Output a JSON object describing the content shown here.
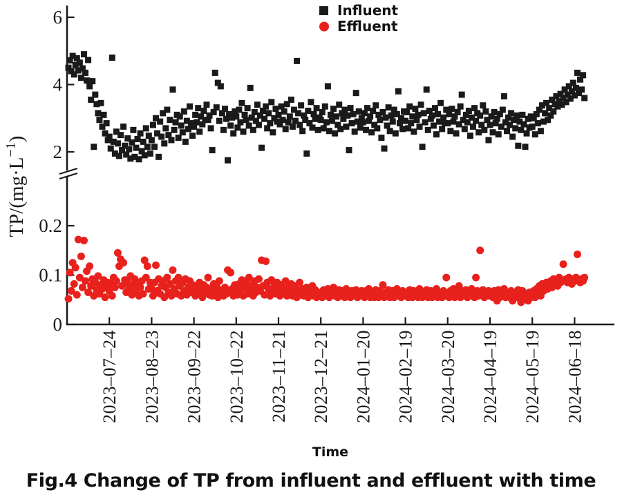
{
  "figure": {
    "caption": "Fig.4 Change of TP from influent and effluent with time",
    "background_color": "#ffffff",
    "axis_color": "#1a1a1a"
  },
  "chart_data": {
    "type": "scatter",
    "title": "",
    "xlabel": "Time",
    "ylabel": "TP/(mg·L⁻¹)",
    "y_label_parts": [
      "TP/(mg·L",
      "−1",
      ")"
    ],
    "broken_y_axis": true,
    "legend_position": "top-center",
    "grid": false,
    "upper_axis": {
      "tick_values": [
        2,
        4,
        6
      ],
      "tick_labels": [
        "2",
        "4",
        "6"
      ],
      "range_shown": [
        1.6,
        6.2
      ]
    },
    "lower_axis": {
      "tick_values": [
        0,
        0.1,
        0.2
      ],
      "tick_labels": [
        "0",
        "0.1",
        "0.2"
      ],
      "range_shown": [
        0,
        0.31
      ]
    },
    "x_axis": {
      "tick_labels": [
        "2023–07–24",
        "2023–08–23",
        "2023–09–22",
        "2023–10–22",
        "2023–11–21",
        "2023–12–21",
        "2024–01–20",
        "2024–02–19",
        "2024–03–20",
        "2024–04–19",
        "2024–05–19",
        "2024–06–18"
      ],
      "tick_days": [
        30,
        60,
        90,
        120,
        150,
        180,
        210,
        240,
        270,
        300,
        330,
        360
      ],
      "day_range": [
        0,
        372
      ]
    },
    "series": [
      {
        "name": "Influent",
        "marker": "square",
        "color": "#1a1a1a",
        "axis": "upper",
        "start_day": 1,
        "values": [
          4.5,
          4.72,
          4.4,
          4.85,
          4.3,
          4.58,
          4.78,
          4.42,
          4.65,
          4.2,
          4.48,
          4.9,
          4.35,
          4.12,
          4.73,
          3.95,
          3.55,
          4.1,
          2.15,
          3.7,
          3.42,
          3.15,
          2.95,
          3.45,
          2.75,
          3.1,
          2.55,
          2.85,
          2.35,
          2.45,
          2.1,
          4.8,
          2.3,
          1.95,
          2.6,
          2.25,
          1.88,
          2.5,
          2.05,
          2.75,
          2.18,
          1.92,
          2.4,
          2.08,
          1.8,
          2.28,
          2.65,
          1.85,
          2.12,
          2.38,
          1.78,
          2.55,
          2.02,
          2.3,
          1.9,
          2.7,
          2.15,
          2.48,
          1.95,
          2.35,
          2.8,
          2.15,
          3.0,
          2.55,
          1.85,
          2.9,
          2.45,
          3.15,
          2.25,
          2.7,
          3.25,
          2.5,
          2.95,
          2.35,
          3.85,
          2.65,
          2.88,
          3.1,
          2.42,
          3.05,
          2.78,
          2.58,
          3.2,
          2.3,
          2.92,
          2.68,
          3.35,
          2.85,
          2.48,
          2.75,
          3.1,
          2.88,
          3.3,
          2.6,
          3.05,
          2.82,
          3.22,
          2.95,
          3.4,
          2.95,
          3.08,
          2.7,
          2.05,
          3.18,
          4.35,
          3.32,
          4.05,
          2.92,
          3.95,
          3.15,
          2.65,
          3.28,
          2.98,
          1.75,
          3.12,
          2.78,
          3.02,
          2.55,
          3.2,
          3.05,
          2.72,
          3.25,
          2.88,
          3.45,
          2.6,
          3.1,
          2.95,
          3.3,
          2.78,
          3.9,
          3.02,
          2.65,
          3.18,
          2.92,
          3.4,
          2.8,
          3.08,
          2.12,
          3.22,
          2.98,
          3.35,
          2.7,
          3.15,
          2.85,
          3.48,
          2.58,
          3.0,
          3.28,
          2.9,
          3.1,
          2.82,
          3.35,
          2.95,
          3.2,
          2.68,
          3.42,
          2.88,
          3.05,
          3.55,
          2.75,
          3.25,
          2.92,
          4.7,
          3.15,
          2.8,
          3.38,
          2.62,
          3.08,
          2.95,
          1.95,
          3.22,
          2.85,
          3.48,
          2.72,
          3.12,
          2.98,
          3.3,
          2.65,
          3.02,
          2.95,
          3.18,
          2.7,
          3.35,
          2.88,
          3.95,
          2.62,
          3.1,
          2.92,
          3.28,
          2.55,
          3.05,
          2.8,
          3.4,
          2.68,
          3.15,
          2.98,
          3.25,
          2.75,
          3.08,
          2.05,
          3.3,
          2.85,
          3.12,
          2.6,
          3.75,
          2.9,
          3.2,
          2.72,
          3.0,
          2.88,
          3.15,
          2.65,
          3.3,
          2.92,
          3.05,
          2.58,
          3.22,
          2.8,
          3.38,
          2.7,
          3.1,
          2.95,
          2.42,
          3.18,
          2.1,
          3.02,
          2.78,
          3.32,
          2.62,
          3.08,
          2.9,
          3.25,
          2.55,
          3.12,
          3.8,
          2.85,
          3.0,
          2.68,
          3.2,
          2.92,
          3.18,
          2.7,
          3.35,
          2.85,
          3.05,
          2.6,
          3.28,
          2.95,
          3.1,
          2.75,
          3.4,
          2.15,
          3.15,
          2.88,
          3.85,
          2.65,
          3.22,
          2.98,
          3.08,
          2.78,
          3.3,
          2.52,
          3.12,
          2.9,
          3.45,
          2.68,
          3.02,
          2.85,
          3.25,
          2.85,
          3.12,
          2.62,
          3.28,
          2.9,
          3.05,
          2.55,
          3.18,
          2.82,
          3.35,
          3.7,
          2.95,
          2.68,
          3.1,
          2.88,
          3.22,
          2.48,
          3.02,
          2.75,
          3.3,
          2.92,
          3.15,
          2.58,
          3.08,
          2.8,
          3.38,
          2.65,
          3.2,
          2.95,
          2.35,
          2.8,
          3.05,
          2.58,
          3.18,
          2.85,
          2.98,
          2.52,
          3.12,
          2.75,
          3.25,
          3.65,
          2.88,
          2.62,
          3.02,
          2.8,
          3.15,
          2.45,
          2.95,
          2.7,
          3.08,
          2.18,
          2.9,
          2.65,
          3.1,
          2.82,
          2.15,
          2.55,
          2.98,
          2.72,
          3.05,
          2.75,
          3.0,
          2.52,
          3.12,
          2.85,
          3.25,
          2.62,
          3.38,
          2.9,
          3.15,
          3.45,
          2.95,
          3.3,
          3.08,
          3.55,
          3.2,
          3.42,
          3.65,
          3.35,
          3.5,
          3.72,
          3.4,
          3.6,
          3.85,
          3.48,
          3.7,
          3.95,
          3.58,
          3.8,
          4.05,
          3.68,
          3.9,
          4.35,
          3.75,
          4.15,
          3.85,
          4.28,
          3.6
        ]
      },
      {
        "name": "Effluent",
        "marker": "circle",
        "color": "#e8211d",
        "axis": "lower",
        "start_day": 1,
        "values": [
          0.052,
          0.105,
          0.068,
          0.125,
          0.082,
          0.115,
          0.06,
          0.172,
          0.095,
          0.138,
          0.075,
          0.17,
          0.088,
          0.108,
          0.065,
          0.118,
          0.078,
          0.092,
          0.058,
          0.085,
          0.07,
          0.098,
          0.062,
          0.08,
          0.072,
          0.09,
          0.055,
          0.075,
          0.085,
          0.068,
          0.082,
          0.058,
          0.095,
          0.075,
          0.088,
          0.145,
          0.118,
          0.132,
          0.078,
          0.125,
          0.09,
          0.065,
          0.085,
          0.072,
          0.098,
          0.06,
          0.08,
          0.092,
          0.068,
          0.085,
          0.058,
          0.075,
          0.088,
          0.062,
          0.13,
          0.095,
          0.118,
          0.072,
          0.085,
          0.072,
          0.058,
          0.085,
          0.12,
          0.068,
          0.092,
          0.062,
          0.078,
          0.088,
          0.055,
          0.075,
          0.095,
          0.065,
          0.082,
          0.058,
          0.11,
          0.072,
          0.088,
          0.062,
          0.095,
          0.078,
          0.058,
          0.085,
          0.068,
          0.092,
          0.06,
          0.075,
          0.088,
          0.065,
          0.08,
          0.068,
          0.058,
          0.078,
          0.062,
          0.085,
          0.07,
          0.055,
          0.08,
          0.065,
          0.075,
          0.095,
          0.06,
          0.072,
          0.058,
          0.082,
          0.068,
          0.078,
          0.055,
          0.088,
          0.065,
          0.07,
          0.058,
          0.075,
          0.062,
          0.11,
          0.068,
          0.105,
          0.072,
          0.058,
          0.08,
          0.072,
          0.06,
          0.082,
          0.068,
          0.09,
          0.058,
          0.075,
          0.085,
          0.062,
          0.095,
          0.07,
          0.08,
          0.058,
          0.088,
          0.065,
          0.075,
          0.092,
          0.068,
          0.13,
          0.078,
          0.06,
          0.128,
          0.085,
          0.072,
          0.058,
          0.09,
          0.068,
          0.078,
          0.062,
          0.085,
          0.068,
          0.058,
          0.08,
          0.072,
          0.062,
          0.088,
          0.058,
          0.075,
          0.065,
          0.082,
          0.058,
          0.07,
          0.078,
          0.055,
          0.068,
          0.085,
          0.06,
          0.072,
          0.058,
          0.065,
          0.075,
          0.055,
          0.068,
          0.062,
          0.078,
          0.058,
          0.07,
          0.055,
          0.065,
          0.06,
          0.062,
          0.055,
          0.07,
          0.058,
          0.065,
          0.072,
          0.055,
          0.068,
          0.06,
          0.075,
          0.058,
          0.065,
          0.055,
          0.07,
          0.062,
          0.058,
          0.068,
          0.055,
          0.072,
          0.06,
          0.065,
          0.055,
          0.068,
          0.058,
          0.062,
          0.07,
          0.055,
          0.065,
          0.058,
          0.068,
          0.06,
          0.055,
          0.068,
          0.058,
          0.072,
          0.055,
          0.065,
          0.06,
          0.055,
          0.07,
          0.062,
          0.055,
          0.068,
          0.058,
          0.08,
          0.055,
          0.065,
          0.058,
          0.07,
          0.055,
          0.062,
          0.068,
          0.055,
          0.06,
          0.072,
          0.058,
          0.065,
          0.055,
          0.068,
          0.06,
          0.058,
          0.065,
          0.055,
          0.07,
          0.06,
          0.055,
          0.068,
          0.058,
          0.062,
          0.055,
          0.072,
          0.06,
          0.055,
          0.065,
          0.058,
          0.07,
          0.055,
          0.062,
          0.068,
          0.055,
          0.06,
          0.058,
          0.072,
          0.055,
          0.065,
          0.06,
          0.055,
          0.068,
          0.058,
          0.095,
          0.062,
          0.055,
          0.068,
          0.058,
          0.072,
          0.055,
          0.065,
          0.06,
          0.078,
          0.055,
          0.068,
          0.058,
          0.062,
          0.07,
          0.055,
          0.065,
          0.058,
          0.072,
          0.06,
          0.055,
          0.095,
          0.068,
          0.058,
          0.15,
          0.062,
          0.07,
          0.055,
          0.065,
          0.058,
          0.068,
          0.058,
          0.065,
          0.055,
          0.068,
          0.06,
          0.048,
          0.07,
          0.055,
          0.062,
          0.058,
          0.072,
          0.055,
          0.065,
          0.06,
          0.055,
          0.068,
          0.048,
          0.058,
          0.065,
          0.055,
          0.07,
          0.06,
          0.045,
          0.068,
          0.055,
          0.062,
          0.058,
          0.048,
          0.065,
          0.055,
          0.06,
          0.068,
          0.055,
          0.072,
          0.062,
          0.078,
          0.058,
          0.082,
          0.068,
          0.075,
          0.085,
          0.072,
          0.08,
          0.088,
          0.075,
          0.092,
          0.082,
          0.088,
          0.078,
          0.095,
          0.085,
          0.09,
          0.122,
          0.088,
          0.092,
          0.085,
          0.095,
          0.088,
          0.082,
          0.092,
          0.088,
          0.095,
          0.142,
          0.09,
          0.085,
          0.092,
          0.088,
          0.095
        ]
      }
    ]
  }
}
